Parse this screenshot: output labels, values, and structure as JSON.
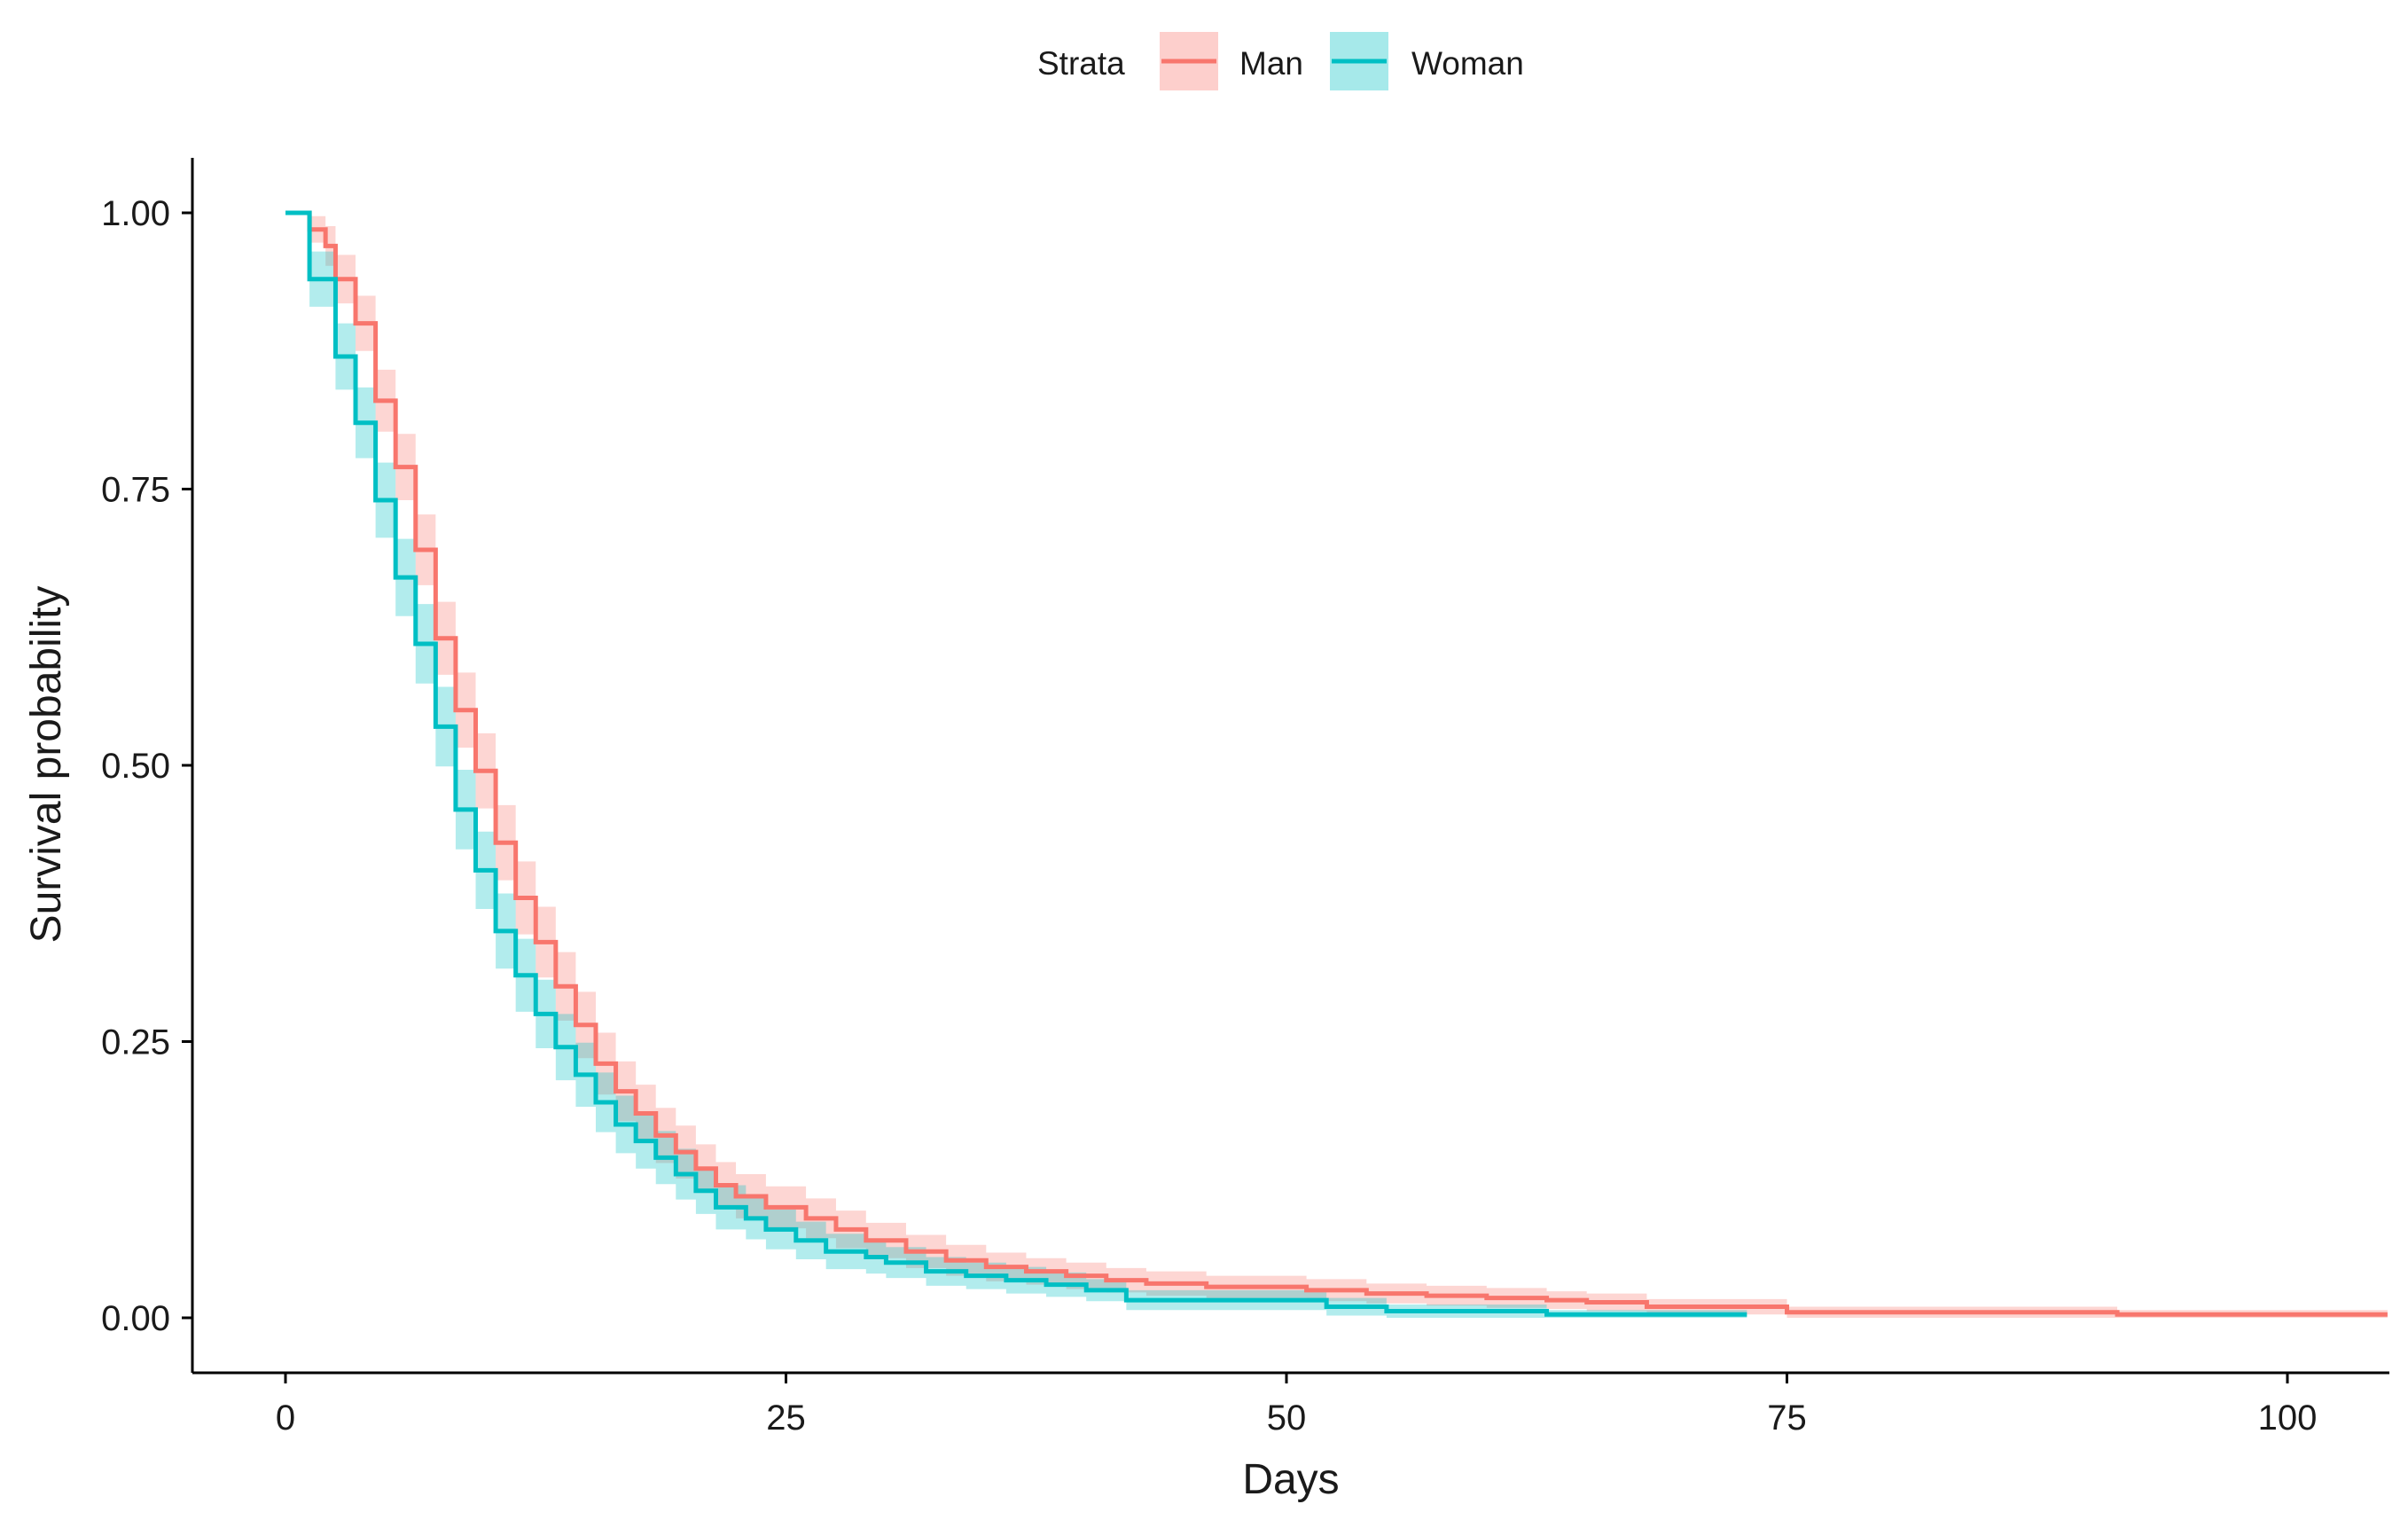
{
  "chart_data": {
    "type": "line",
    "step": true,
    "xlabel": "Days",
    "ylabel": "Survival probability",
    "xlim": [
      -5,
      105
    ],
    "ylim": [
      -0.05,
      1.05
    ],
    "xticks": [
      0,
      25,
      50,
      75,
      100
    ],
    "xtick_labels": [
      "0",
      "25",
      "50",
      "75",
      "100"
    ],
    "yticks": [
      0,
      0.25,
      0.5,
      0.75,
      1.0
    ],
    "ytick_labels": [
      "0.00",
      "0.25",
      "0.50",
      "0.75",
      "1.00"
    ],
    "grid": false,
    "legend": {
      "position": "top",
      "title": "Strata",
      "entries": [
        "Man",
        "Woman"
      ]
    },
    "series": [
      {
        "name": "Man",
        "color": "#F8766D",
        "band_color": "#F8766D",
        "points": [
          [
            0,
            1.0
          ],
          [
            1,
            1.0
          ],
          [
            1.2,
            0.985
          ],
          [
            2,
            0.97
          ],
          [
            2.5,
            0.94
          ],
          [
            3.5,
            0.9
          ],
          [
            4.5,
            0.83
          ],
          [
            5.5,
            0.77
          ],
          [
            6.5,
            0.695
          ],
          [
            7.5,
            0.615
          ],
          [
            8.5,
            0.55
          ],
          [
            9.5,
            0.495
          ],
          [
            10.5,
            0.43
          ],
          [
            11.5,
            0.38
          ],
          [
            12.5,
            0.34
          ],
          [
            13.5,
            0.3
          ],
          [
            14.5,
            0.265
          ],
          [
            15.5,
            0.23
          ],
          [
            16.5,
            0.205
          ],
          [
            17.5,
            0.185
          ],
          [
            18.5,
            0.165
          ],
          [
            19.5,
            0.15
          ],
          [
            20.5,
            0.135
          ],
          [
            21.5,
            0.12
          ],
          [
            22.5,
            0.11
          ],
          [
            24,
            0.1
          ],
          [
            26,
            0.09
          ],
          [
            27.5,
            0.08
          ],
          [
            29,
            0.07
          ],
          [
            31,
            0.06
          ],
          [
            33,
            0.052
          ],
          [
            35,
            0.046
          ],
          [
            37,
            0.042
          ],
          [
            39,
            0.038
          ],
          [
            41,
            0.034
          ],
          [
            43,
            0.031
          ],
          [
            46,
            0.028
          ],
          [
            51,
            0.025
          ],
          [
            54,
            0.022
          ],
          [
            57,
            0.02
          ],
          [
            60,
            0.018
          ],
          [
            63,
            0.016
          ],
          [
            65,
            0.014
          ],
          [
            68,
            0.01
          ],
          [
            73,
            0.01
          ],
          [
            75,
            0.005
          ],
          [
            91,
            0.005
          ],
          [
            91.5,
            0.003
          ],
          [
            105,
            0.003
          ]
        ],
        "band_halfwidth": [
          0.0,
          0.0,
          0.012,
          0.018,
          0.022,
          0.025,
          0.028,
          0.03,
          0.032,
          0.033,
          0.034,
          0.034,
          0.034,
          0.033,
          0.032,
          0.031,
          0.03,
          0.028,
          0.027,
          0.026,
          0.025,
          0.024,
          0.022,
          0.021,
          0.02,
          0.019,
          0.018,
          0.017,
          0.016,
          0.015,
          0.014,
          0.013,
          0.012,
          0.012,
          0.011,
          0.011,
          0.01,
          0.01,
          0.009,
          0.009,
          0.009,
          0.008,
          0.008,
          0.007,
          0.007,
          0.005,
          0.005,
          0.004,
          0.004
        ]
      },
      {
        "name": "Woman",
        "color": "#00BFC4",
        "band_color": "#00BFC4",
        "points": [
          [
            0,
            1.0
          ],
          [
            1.2,
            1.0
          ],
          [
            1.2,
            0.94
          ],
          [
            2,
            0.94
          ],
          [
            2.5,
            0.87
          ],
          [
            3.5,
            0.81
          ],
          [
            4.5,
            0.74
          ],
          [
            5.5,
            0.67
          ],
          [
            6.5,
            0.61
          ],
          [
            7.5,
            0.535
          ],
          [
            8.5,
            0.46
          ],
          [
            9.5,
            0.405
          ],
          [
            10.5,
            0.35
          ],
          [
            11.5,
            0.31
          ],
          [
            12.5,
            0.275
          ],
          [
            13.5,
            0.245
          ],
          [
            14.5,
            0.22
          ],
          [
            15.5,
            0.195
          ],
          [
            16.5,
            0.175
          ],
          [
            17.5,
            0.16
          ],
          [
            18.5,
            0.145
          ],
          [
            19.5,
            0.13
          ],
          [
            20.5,
            0.115
          ],
          [
            21.5,
            0.1
          ],
          [
            23,
            0.09
          ],
          [
            24,
            0.08
          ],
          [
            25.5,
            0.07
          ],
          [
            27,
            0.06
          ],
          [
            29,
            0.055
          ],
          [
            30,
            0.05
          ],
          [
            32,
            0.042
          ],
          [
            34,
            0.038
          ],
          [
            36,
            0.034
          ],
          [
            38,
            0.03
          ],
          [
            40,
            0.025
          ],
          [
            42,
            0.016
          ],
          [
            52,
            0.01
          ],
          [
            55,
            0.006
          ],
          [
            63,
            0.003
          ],
          [
            73,
            0.003
          ]
        ],
        "band_halfwidth": [
          0.0,
          0.0,
          0.025,
          0.025,
          0.03,
          0.032,
          0.034,
          0.035,
          0.036,
          0.036,
          0.036,
          0.035,
          0.034,
          0.033,
          0.031,
          0.03,
          0.029,
          0.027,
          0.026,
          0.025,
          0.024,
          0.023,
          0.021,
          0.02,
          0.019,
          0.018,
          0.017,
          0.016,
          0.015,
          0.014,
          0.013,
          0.012,
          0.012,
          0.011,
          0.01,
          0.009,
          0.008,
          0.006,
          0.004,
          0.004
        ]
      }
    ]
  }
}
